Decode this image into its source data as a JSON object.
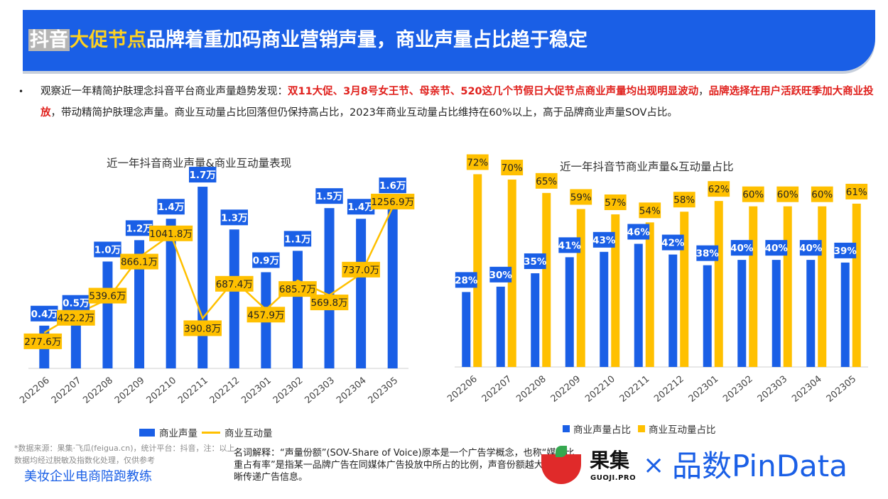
{
  "header": {
    "title_part1": "抖音",
    "title_part2": "大促节点",
    "title_part3": "品牌着重加码商业营销声量，商业声量占比趋于稳定"
  },
  "bullet": {
    "dot": "•",
    "seg1": "观察近一年精简护肤理念抖音平台商业声量趋势发现：",
    "seg2": "双11大促、3月8号女王节、母亲节、520这几个节假日大促节点商业声量均出现明显波动",
    "seg3": "，",
    "seg4": "品牌选择在用户活跃旺季加大商业投放",
    "seg5": "，带动精简护肤理念声量。商业互动量占比回落但仍保持高占比，2023年商业互动量占比维持在60%以上，高于品牌商业声量SOV占比。"
  },
  "chart_data": [
    {
      "type": "bar+line",
      "title": "近一年抖音商业声量&商业互动量表现",
      "categories": [
        "202206",
        "202207",
        "202208",
        "202209",
        "202210",
        "202211",
        "202212",
        "202301",
        "202302",
        "202303",
        "202304",
        "202305"
      ],
      "series": [
        {
          "name": "商业声量",
          "type": "bar",
          "values": [
            0.4,
            0.5,
            1.0,
            1.2,
            1.4,
            1.7,
            1.3,
            0.9,
            1.1,
            1.5,
            1.4,
            1.6
          ],
          "labels": [
            "0.4万",
            "0.5万",
            "1.0万",
            "1.2万",
            "1.4万",
            "1.7万",
            "1.3万",
            "0.9万",
            "1.1万",
            "1.5万",
            "1.4万",
            "1.6万"
          ]
        },
        {
          "name": "商业互动量",
          "type": "line",
          "values": [
            277.6,
            422.2,
            539.6,
            866.1,
            1041.8,
            390.8,
            687.4,
            457.9,
            685.7,
            569.8,
            737.0,
            1256.9
          ],
          "labels": [
            "277.6万",
            "422.2万",
            "539.6万",
            "866.1万",
            "1041.8万",
            "390.8万",
            "687.4万",
            "457.9万",
            "685.7万",
            "569.8万",
            "737.0万",
            "1256.9万"
          ]
        }
      ],
      "ylim_bar": [
        0,
        1.8
      ],
      "ylim_line": [
        0,
        1500
      ],
      "legend": "bottom",
      "colors": {
        "bar": "#1a5fe6",
        "line": "#ffc000"
      }
    },
    {
      "type": "bar",
      "title": "近一年抖音节商业声量&互动量占比",
      "categories": [
        "202206",
        "202207",
        "202208",
        "202209",
        "202210",
        "202211",
        "202212",
        "202301",
        "202302",
        "202303",
        "202304",
        "202305"
      ],
      "series": [
        {
          "name": "商业声量占比",
          "values": [
            28,
            30,
            35,
            41,
            43,
            46,
            42,
            38,
            40,
            40,
            40,
            39
          ],
          "labels": [
            "28%",
            "30%",
            "35%",
            "41%",
            "43%",
            "46%",
            "42%",
            "38%",
            "40%",
            "40%",
            "40%",
            "39%"
          ]
        },
        {
          "name": "商业互动量占比",
          "values": [
            72,
            70,
            65,
            59,
            57,
            54,
            58,
            62,
            60,
            60,
            60,
            61
          ],
          "labels": [
            "72%",
            "70%",
            "65%",
            "59%",
            "57%",
            "54%",
            "58%",
            "62%",
            "60%",
            "60%",
            "60%",
            "61%"
          ]
        }
      ],
      "ylim": [
        0,
        80
      ],
      "legend": "bottom",
      "colors": {
        "s1": "#1a5fe6",
        "s2": "#ffc000"
      }
    }
  ],
  "footer": {
    "source": "*数据来源：果集·飞瓜(feigua.cn)，统计平台：抖音，注：以上数据均经过脱敏及指数化处理，仅供参考",
    "coach": "美妆企业电商陪跑教练",
    "glossary": "名词解释：“声量份额”(SOV-Share of Voice)原本是一个广告学概念，也称“媒体比重占有率”是指某一品牌广告在同媒体广告投放中所占的比例，声音份额越大,越能清晰传递广告信息。",
    "logo_cn": "果集",
    "logo_sub": "GUOJI.PRO",
    "times": "×",
    "pindata": "品数PinData"
  }
}
